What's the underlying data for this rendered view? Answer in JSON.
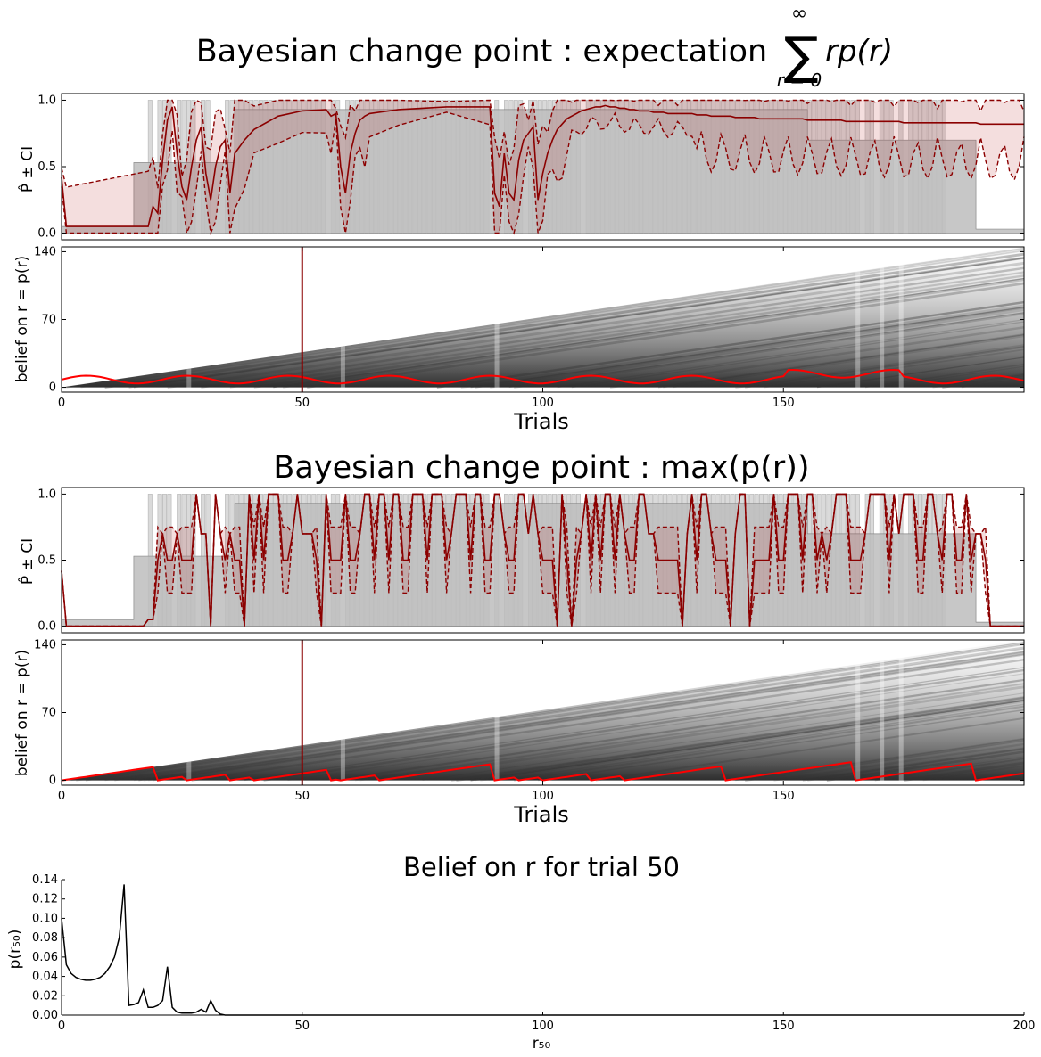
{
  "figure": {
    "title1": "Bayesian change point : expectation",
    "title1_math": "∑ r p(r)",
    "title1_sum_top": "∞",
    "title1_sum_bottom": "r = 0",
    "title2": "Bayesian change point : max(p(r))",
    "title3": "Belief on r for trial 50",
    "xlabel_trials": "Trials",
    "ylabel_p": "P̂ ± CI",
    "ylabel_belief": "belief on r = p(r)",
    "ylabel_pr50": "p(r₅₀)",
    "xlabel_r50": "r₅₀"
  },
  "colors": {
    "estimate": "#8b0000",
    "band": "#b22222",
    "map_line": "#ff0000",
    "cursor": "#8b0000",
    "block_dark": "#bdbdbd",
    "block_light": "#dadada"
  },
  "chart_data": [
    {
      "type": "line",
      "title": "Bayesian change point : expectation ∑ r p(r), r = 0 … ∞",
      "ylabel": "P̂ ± CI",
      "xlim": [
        0,
        200
      ],
      "ylim": [
        -0.05,
        1.05
      ],
      "yticks": [
        "0.0",
        "0.5",
        "1.0"
      ],
      "true_probability": {
        "x": [
          0,
          15,
          15,
          36,
          36,
          155,
          155,
          190,
          190,
          200
        ],
        "y": [
          0.05,
          0.05,
          0.53,
          0.53,
          0.93,
          0.93,
          0.7,
          0.7,
          0.03,
          0.03
        ]
      },
      "series": [
        {
          "x": [
            0,
            1,
            18,
            19,
            20,
            21,
            22,
            23,
            24,
            25,
            26,
            27,
            28,
            29,
            30,
            31,
            32,
            33,
            34,
            35,
            36,
            38,
            40,
            45,
            50,
            55,
            56,
            57,
            58,
            59,
            60,
            61,
            62,
            63,
            64,
            70,
            80,
            89,
            90,
            91,
            92,
            93,
            94,
            95,
            96,
            97,
            98,
            99,
            100,
            101,
            102,
            103,
            104,
            105,
            106,
            107,
            108,
            109,
            110,
            111,
            112,
            113,
            114,
            115,
            116,
            117,
            118,
            119,
            120,
            121,
            122,
            123,
            124,
            125,
            126,
            127,
            128,
            129,
            130,
            131,
            132,
            133,
            134,
            135,
            136,
            137,
            138,
            139,
            140,
            141,
            142,
            143,
            144,
            145,
            146,
            147,
            148,
            149,
            150,
            151,
            152,
            153,
            154,
            155,
            156,
            157,
            158,
            159,
            160,
            161,
            162,
            163,
            164,
            165,
            166,
            167,
            168,
            169,
            170,
            171,
            172,
            173,
            174,
            175,
            176,
            177,
            178,
            179,
            180,
            181,
            182,
            183,
            184,
            185,
            186,
            187,
            188,
            189,
            190,
            191,
            192,
            193,
            194,
            195,
            196,
            197,
            198,
            199,
            200
          ],
          "y": [
            0.42,
            0.05,
            0.05,
            0.2,
            0.15,
            0.55,
            0.85,
            0.95,
            0.6,
            0.35,
            0.25,
            0.5,
            0.7,
            0.8,
            0.45,
            0.25,
            0.5,
            0.65,
            0.7,
            0.3,
            0.6,
            0.7,
            0.78,
            0.88,
            0.92,
            0.93,
            0.88,
            0.9,
            0.5,
            0.3,
            0.6,
            0.75,
            0.85,
            0.88,
            0.9,
            0.93,
            0.95,
            0.95,
            0.3,
            0.2,
            0.6,
            0.3,
            0.25,
            0.55,
            0.7,
            0.75,
            0.8,
            0.25,
            0.45,
            0.6,
            0.7,
            0.78,
            0.82,
            0.86,
            0.88,
            0.9,
            0.92,
            0.93,
            0.94,
            0.95,
            0.95,
            0.96,
            0.95,
            0.95,
            0.94,
            0.94,
            0.93,
            0.93,
            0.92,
            0.92,
            0.92,
            0.91,
            0.91,
            0.91,
            0.9,
            0.9,
            0.9,
            0.9,
            0.9,
            0.9,
            0.89,
            0.89,
            0.89,
            0.88,
            0.88,
            0.88,
            0.88,
            0.88,
            0.87,
            0.87,
            0.87,
            0.87,
            0.87,
            0.86,
            0.86,
            0.86,
            0.86,
            0.86,
            0.86,
            0.86,
            0.86,
            0.86,
            0.86,
            0.85,
            0.85,
            0.85,
            0.85,
            0.85,
            0.85,
            0.85,
            0.85,
            0.84,
            0.84,
            0.84,
            0.84,
            0.84,
            0.84,
            0.84,
            0.84,
            0.84,
            0.84,
            0.84,
            0.84,
            0.83,
            0.83,
            0.83,
            0.83,
            0.83,
            0.83,
            0.83,
            0.83,
            0.83,
            0.83,
            0.83,
            0.83,
            0.83,
            0.83,
            0.83,
            0.83,
            0.82,
            0.82,
            0.82,
            0.82,
            0.82,
            0.82,
            0.82,
            0.82,
            0.82,
            0.82
          ],
          "name": ""
        }
      ],
      "note_series": "estimate with CI band"
    },
    {
      "type": "heatmap",
      "ylabel": "belief on r = p(r)",
      "xlabel": "Trials",
      "xlim": [
        0,
        200
      ],
      "ylim": [
        -5,
        145
      ],
      "xticks": [
        "0",
        "50",
        "100",
        "150"
      ],
      "yticks": [
        "0",
        "70",
        "140"
      ],
      "cursor_trial": 50
    },
    {
      "type": "line",
      "title": "Bayesian change point : max(p(r))",
      "ylabel": "P̂ ± CI",
      "xlim": [
        0,
        200
      ],
      "ylim": [
        -0.05,
        1.05
      ],
      "yticks": [
        "0.0",
        "0.5",
        "1.0"
      ]
    },
    {
      "type": "heatmap",
      "ylabel": "belief on r = p(r)",
      "xlabel": "Trials",
      "xlim": [
        0,
        200
      ],
      "ylim": [
        -5,
        145
      ],
      "xticks": [
        "0",
        "50",
        "100",
        "150"
      ],
      "yticks": [
        "0",
        "70",
        "140"
      ],
      "cursor_trial": 50
    },
    {
      "type": "line",
      "title": "Belief on r for trial 50",
      "xlabel": "r₅₀",
      "ylabel": "p(r₅₀)",
      "xlim": [
        0,
        200
      ],
      "ylim": [
        0,
        0.14
      ],
      "xticks": [
        "0",
        "50",
        "100",
        "150",
        "200"
      ],
      "yticks": [
        "0.00",
        "0.02",
        "0.04",
        "0.06",
        "0.08",
        "0.10",
        "0.12",
        "0.14"
      ],
      "x": [
        0,
        1,
        2,
        3,
        4,
        5,
        6,
        7,
        8,
        9,
        10,
        11,
        12,
        13,
        14,
        15,
        16,
        17,
        18,
        19,
        20,
        21,
        22,
        23,
        24,
        25,
        26,
        27,
        28,
        29,
        30,
        31,
        32,
        33,
        34,
        35,
        40,
        50,
        100,
        150,
        200
      ],
      "y": [
        0.1,
        0.052,
        0.043,
        0.039,
        0.037,
        0.036,
        0.036,
        0.037,
        0.039,
        0.043,
        0.05,
        0.06,
        0.08,
        0.135,
        0.01,
        0.011,
        0.013,
        0.026,
        0.008,
        0.008,
        0.01,
        0.015,
        0.05,
        0.008,
        0.003,
        0.002,
        0.002,
        0.002,
        0.003,
        0.006,
        0.003,
        0.015,
        0.005,
        0.001,
        0.0,
        0.0,
        0.0,
        0.0,
        0.0,
        0.0,
        0.0
      ]
    }
  ]
}
